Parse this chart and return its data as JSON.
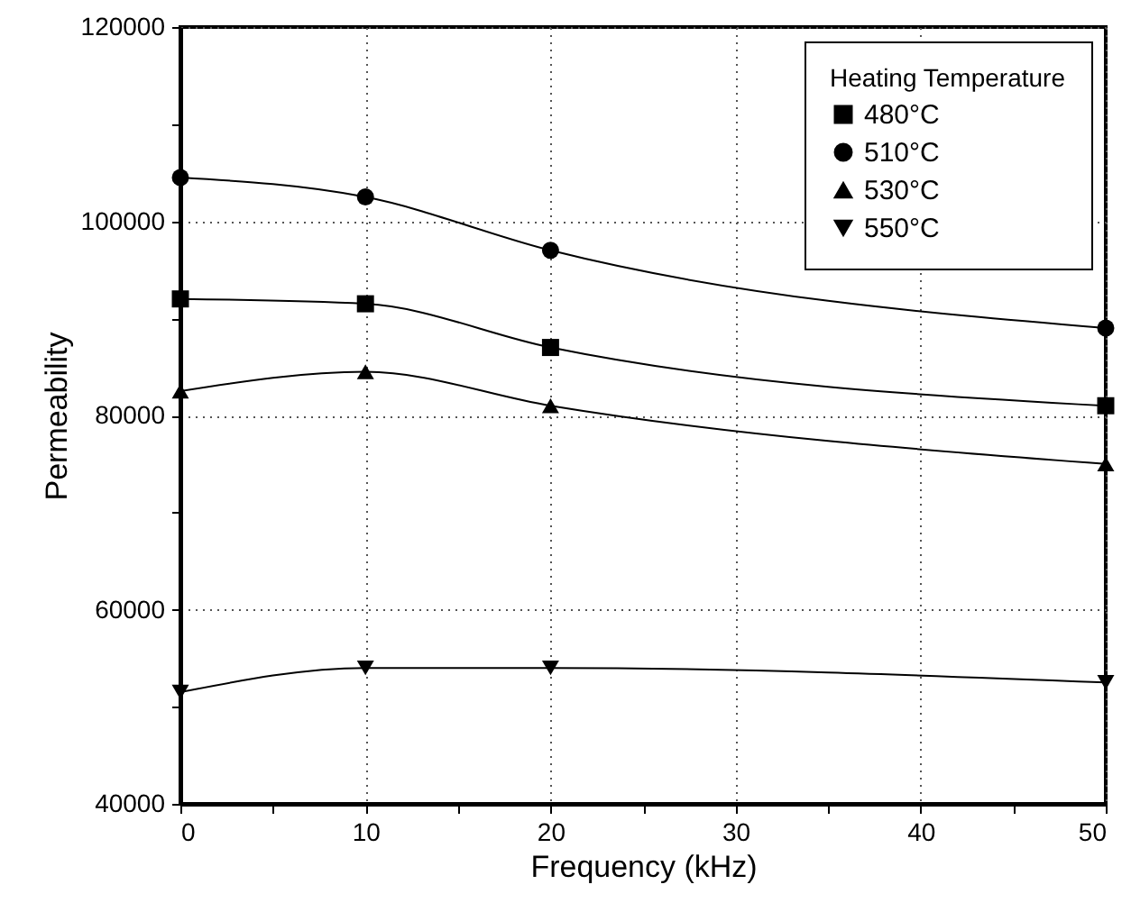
{
  "chart_data": {
    "type": "line",
    "xlabel": "Frequency (kHz)",
    "ylabel": "Permeability",
    "legend_title": "Heating Temperature",
    "x": [
      0,
      10,
      20,
      50
    ],
    "xlim": [
      0,
      50
    ],
    "xticks": [
      0,
      {
        "value": 5,
        "label": null
      },
      10,
      {
        "value": 15,
        "label": null
      },
      20,
      {
        "value": 25,
        "label": null
      },
      30,
      {
        "value": 35,
        "label": null
      },
      40,
      {
        "value": 45,
        "label": null
      },
      50
    ],
    "ylim": [
      40000,
      120000
    ],
    "yticks": [
      40000,
      {
        "value": 50000,
        "label": null
      },
      60000,
      {
        "value": 70000,
        "label": null
      },
      80000,
      {
        "value": 90000,
        "label": null
      },
      100000,
      {
        "value": 110000,
        "label": null
      },
      120000
    ],
    "grid": true,
    "legend": "top right",
    "line_style": "solid",
    "series": [
      {
        "name": "480°C",
        "color": "#000000",
        "marker": "square",
        "values": [
          92000,
          91500,
          87000,
          81000
        ]
      },
      {
        "name": "510°C",
        "color": "#000000",
        "marker": "circle",
        "values": [
          104500,
          102500,
          97000,
          89000
        ]
      },
      {
        "name": "530°C",
        "color": "#000000",
        "marker": "triangle",
        "values": [
          82500,
          84500,
          81000,
          75000
        ]
      },
      {
        "name": "550°C",
        "color": "#000000",
        "marker": "triangle-down",
        "values": [
          51500,
          54000,
          54000,
          52500
        ]
      }
    ]
  }
}
